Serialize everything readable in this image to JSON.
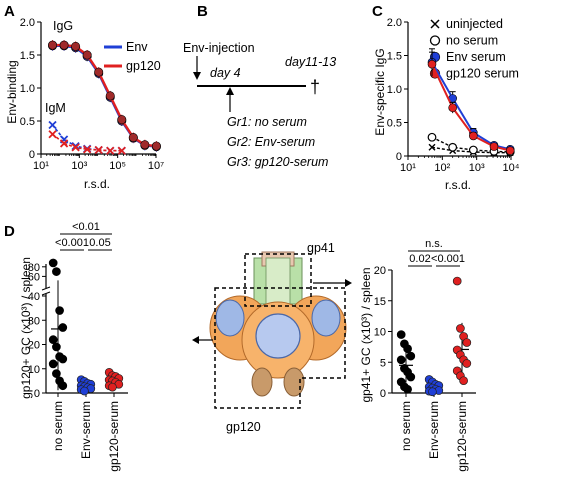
{
  "panel_letters": {
    "A": "A",
    "B": "B",
    "C": "C",
    "D": "D"
  },
  "chart_data": [
    {
      "panel": "A",
      "type": "line",
      "ylabel": "Env-binding",
      "xlabel": "r.s.d.",
      "x_scale": "log",
      "xlim": [
        10,
        10000000
      ],
      "ylim": [
        0,
        2.0
      ],
      "yticks": [
        "0",
        "0.5",
        "1.0",
        "1.5",
        "2.0"
      ],
      "xticks": [
        "10¹",
        "10³",
        "10⁵",
        "10⁷"
      ],
      "annotations": [
        "IgG",
        "IgM"
      ],
      "legend_position": "top-right",
      "series": [
        {
          "name": "Env",
          "color": "#1f3fd6",
          "x": [
            40,
            160,
            640,
            2560,
            10240,
            40960,
            163840,
            655360,
            2621440,
            10485760
          ],
          "y": [
            1.64,
            1.64,
            1.61,
            1.48,
            1.22,
            0.86,
            0.5,
            0.24,
            0.13,
            0.11
          ]
        },
        {
          "name": "gp120",
          "color": "#e02020",
          "x": [
            40,
            160,
            640,
            2560,
            10240,
            40960,
            163840,
            655360,
            2621440,
            10485760
          ],
          "y": [
            1.65,
            1.65,
            1.63,
            1.5,
            1.24,
            0.88,
            0.52,
            0.25,
            0.14,
            0.12
          ]
        },
        {
          "name": "Env IgM",
          "color": "#1f3fd6",
          "x": [
            40,
            160,
            640,
            2560,
            10240,
            40960,
            163840
          ],
          "y": [
            0.44,
            0.22,
            0.12,
            0.08,
            0.06,
            0.05,
            0.05
          ]
        },
        {
          "name": "gp120 IgM",
          "color": "#e02020",
          "x": [
            40,
            160,
            640,
            2560,
            10240,
            40960,
            163840
          ],
          "y": [
            0.3,
            0.16,
            0.1,
            0.07,
            0.06,
            0.05,
            0.05
          ]
        }
      ]
    },
    {
      "panel": "B",
      "type": "diagram",
      "labels": {
        "injection": "Env-injection",
        "day4": "day 4",
        "day11": "day11-13",
        "dagger": "†",
        "groups": [
          "Gr1: no serum",
          "Gr2: Env-serum",
          "Gr3: gp120-serum"
        ]
      }
    },
    {
      "panel": "C",
      "type": "line",
      "ylabel": "Env-specific IgG",
      "xlabel": "r.s.d.",
      "x_scale": "log",
      "xlim": [
        10,
        10000
      ],
      "ylim": [
        0,
        2.0
      ],
      "yticks": [
        "0",
        "0.5",
        "1.0",
        "1.5",
        "2.0"
      ],
      "xticks": [
        "10¹",
        "10²",
        "10³",
        "10⁴"
      ],
      "legend_position": "top-right",
      "series": [
        {
          "name": "uninjected",
          "color": "#000000",
          "marker": "x",
          "x": [
            50,
            200,
            800,
            3200,
            12800
          ],
          "y": [
            0.13,
            0.08,
            0.06,
            0.05,
            0.05
          ]
        },
        {
          "name": "no serum",
          "color": "#000000",
          "marker": "open-circle",
          "x": [
            50,
            200,
            800,
            3200,
            12800
          ],
          "y": [
            0.28,
            0.13,
            0.09,
            0.07,
            0.06
          ]
        },
        {
          "name": "Env serum",
          "color": "#1f3fd6",
          "marker": "blue-circle",
          "x": [
            50,
            200,
            800,
            3200,
            12800
          ],
          "y": [
            1.4,
            0.86,
            0.35,
            0.16,
            0.1
          ],
          "err": [
            0.2,
            0.1,
            0.06,
            0.03,
            0.02
          ]
        },
        {
          "name": "gp120 serum",
          "color": "#e02020",
          "marker": "red-circle",
          "x": [
            50,
            200,
            800,
            3200,
            12800
          ],
          "y": [
            1.37,
            0.72,
            0.3,
            0.14,
            0.08
          ],
          "err": [
            0.18,
            0.08,
            0.05,
            0.03,
            0.02
          ]
        }
      ]
    },
    {
      "panel": "D-left",
      "type": "scatter",
      "ylabel": "gp120+ GC (x10³) / spleen",
      "categories": [
        "no serum",
        "Env-serum",
        "gp120-serum"
      ],
      "yticks": [
        "0",
        "10",
        "20",
        "30",
        "40",
        "60",
        "80"
      ],
      "pvalues": [
        {
          "text": "<0.001",
          "from": 0,
          "to": 1
        },
        {
          "text": "0.05",
          "from": 1,
          "to": 2
        },
        {
          "text": "<0.01",
          "from": 0,
          "to": 2
        }
      ],
      "series": [
        {
          "name": "no serum",
          "color": "#000000",
          "values": [
            88,
            70,
            34,
            27,
            22,
            19,
            15,
            14,
            12,
            8,
            5,
            3
          ]
        },
        {
          "name": "Env-serum",
          "color": "#1f3fd6",
          "values": [
            5.5,
            4.8,
            4.0,
            3.6,
            3.0,
            2.6,
            2.2,
            1.8,
            1.4,
            0.8
          ]
        },
        {
          "name": "gp120-serum",
          "color": "#e02020",
          "values": [
            8.5,
            7.2,
            6.8,
            6.0,
            5.4,
            5.0,
            4.4,
            3.6,
            3.0,
            2.4
          ]
        }
      ]
    },
    {
      "panel": "D-right",
      "type": "scatter",
      "ylabel": "gp41+ GC (x10³) / spleen",
      "categories": [
        "no serum",
        "Env-serum",
        "gp120-serum"
      ],
      "yticks": [
        "0",
        "5",
        "10",
        "15",
        "20"
      ],
      "ylim": [
        0,
        20
      ],
      "pvalues": [
        {
          "text": "0.02",
          "from": 0,
          "to": 1
        },
        {
          "text": "<0.001",
          "from": 1,
          "to": 2
        },
        {
          "text": "n.s.",
          "from": 0,
          "to": 2
        }
      ],
      "series": [
        {
          "name": "no serum",
          "color": "#000000",
          "values": [
            9.5,
            8.0,
            7.2,
            6.0,
            5.4,
            4.0,
            3.4,
            2.6,
            1.8,
            1.0,
            0.6
          ]
        },
        {
          "name": "Env-serum",
          "color": "#1f3fd6",
          "values": [
            2.2,
            1.8,
            1.4,
            1.2,
            1.0,
            0.8,
            0.6,
            0.4,
            0.3,
            0.2
          ]
        },
        {
          "name": "gp120-serum",
          "color": "#e02020",
          "values": [
            18.2,
            10.5,
            9.2,
            8.2,
            7.0,
            6.2,
            5.4,
            4.8,
            3.6,
            2.8,
            2.0
          ]
        }
      ]
    }
  ],
  "diagram_labels": {
    "gp41": "gp41",
    "gp120": "gp120"
  }
}
